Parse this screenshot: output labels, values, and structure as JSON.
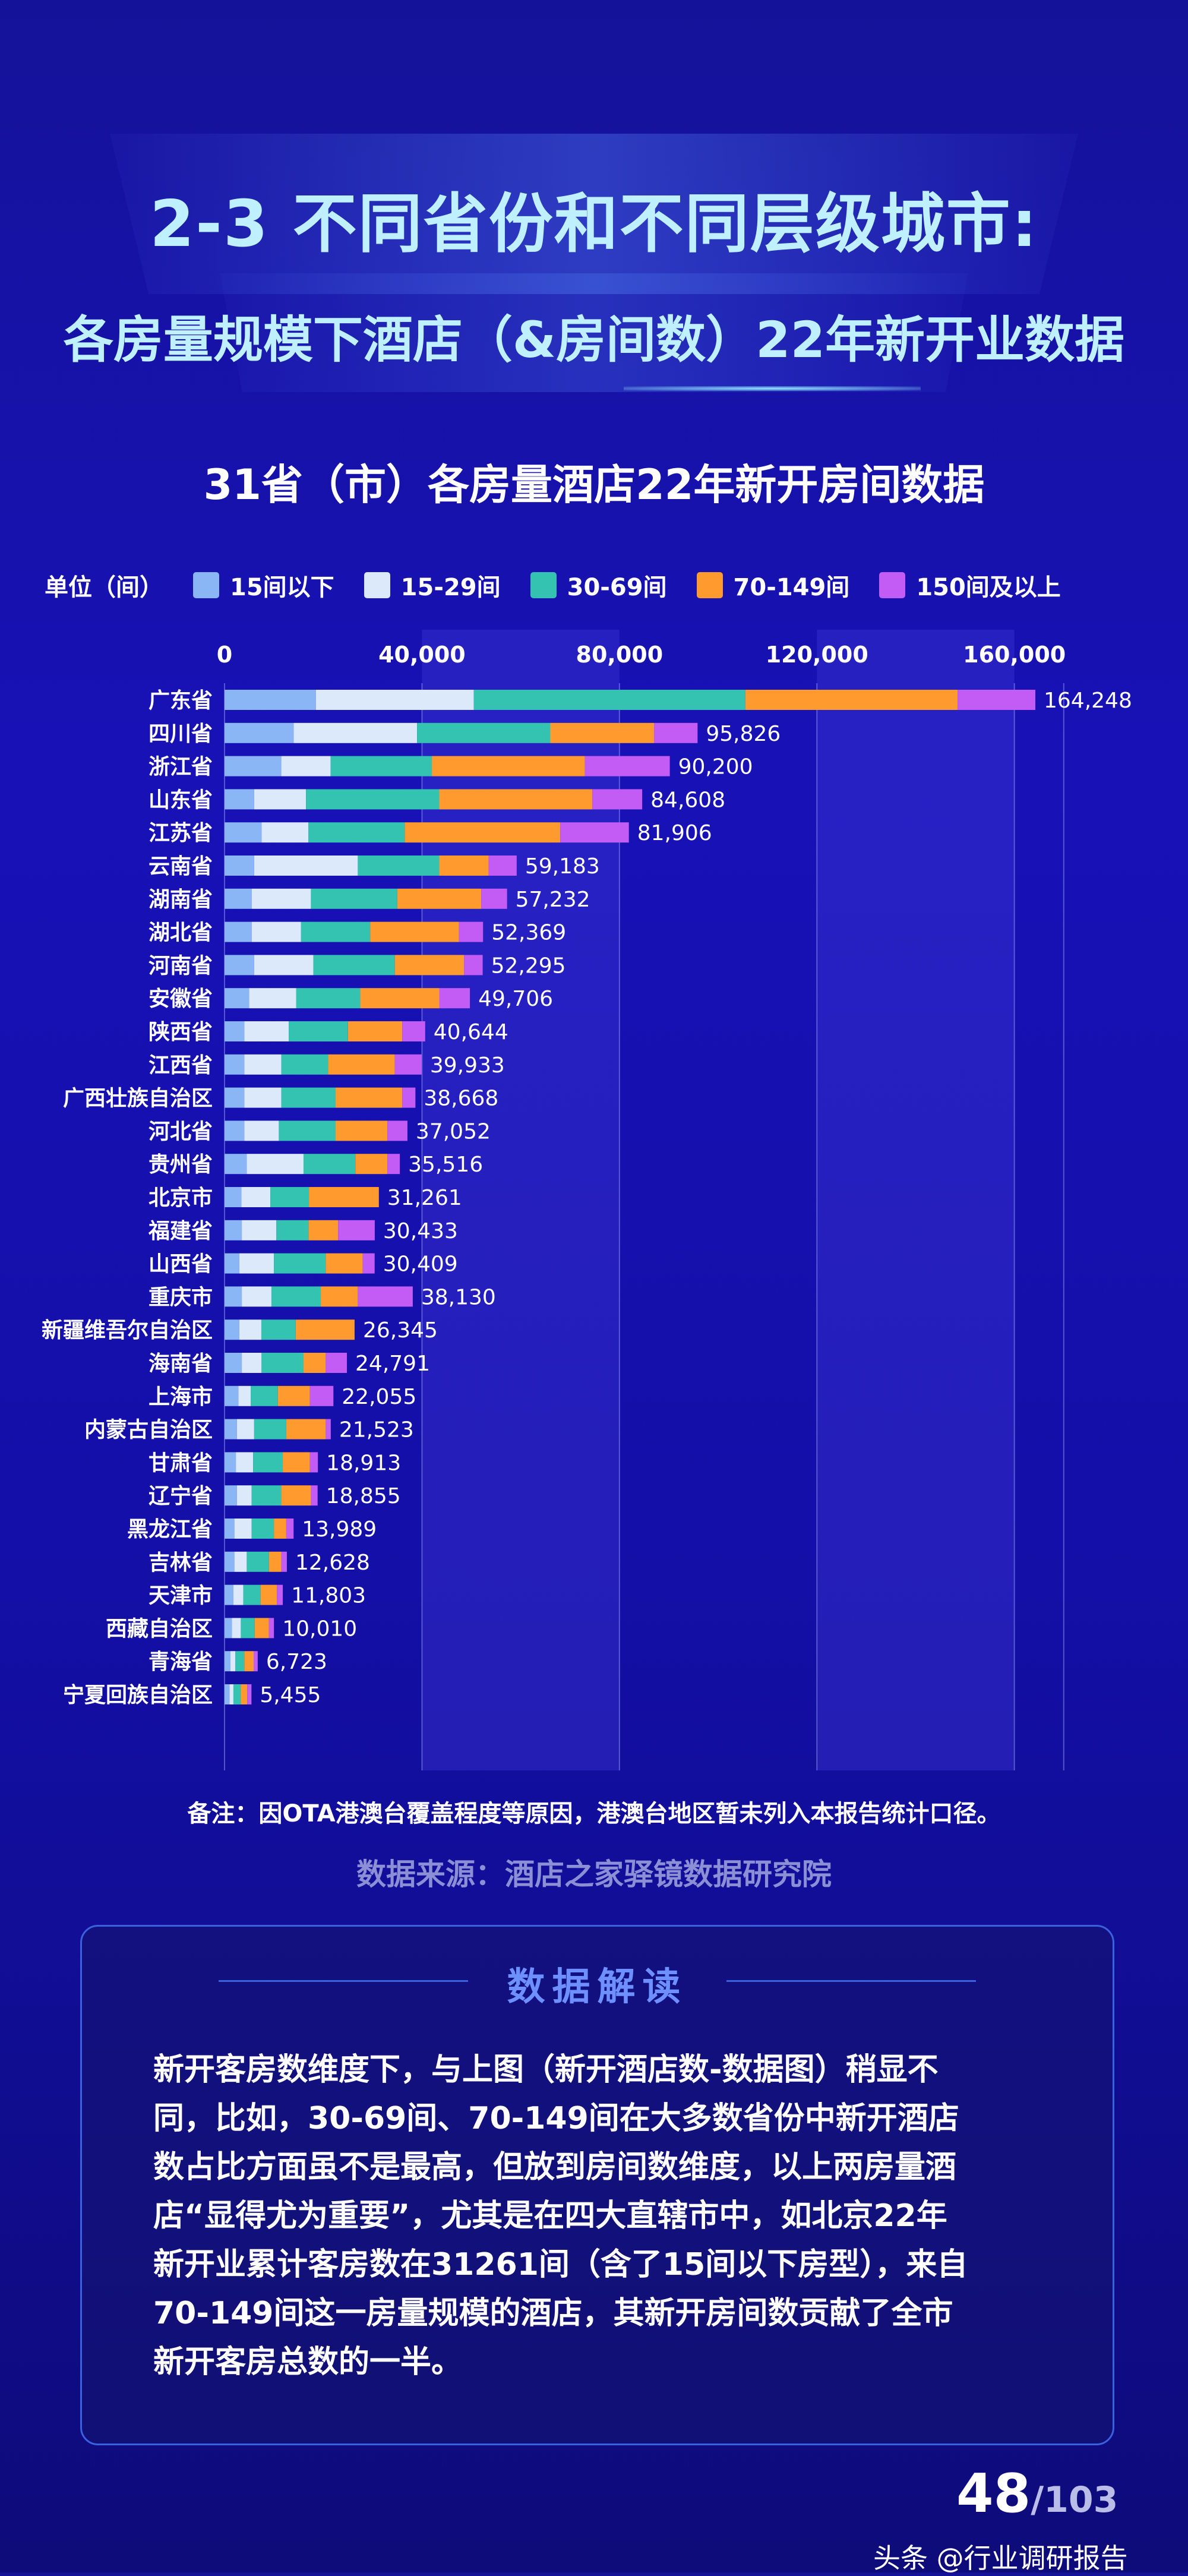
{
  "header": {
    "title_line1": "2-3 不同省份和不同层级城市:",
    "title_line2": "各房量规模下酒店（&房间数）22年新开业数据"
  },
  "chart_data": {
    "type": "bar",
    "orientation": "horizontal",
    "stacked": true,
    "title": "31省（市）各房量酒店22年新开房间数据",
    "unit_label": "单位（间）",
    "xlim": [
      0,
      170000
    ],
    "xticks": [
      0,
      40000,
      80000,
      120000,
      160000
    ],
    "xtick_labels": [
      "0",
      "40,000",
      "80,000",
      "120,000",
      "160,000"
    ],
    "categories": [
      "广东省",
      "四川省",
      "浙江省",
      "山东省",
      "江苏省",
      "云南省",
      "湖南省",
      "湖北省",
      "河南省",
      "安徽省",
      "陕西省",
      "江西省",
      "广西壮族自治区",
      "河北省",
      "贵州省",
      "北京市",
      "福建省",
      "山西省",
      "重庆市",
      "新疆维吾尔自治区",
      "海南省",
      "上海市",
      "内蒙古自治区",
      "甘肃省",
      "辽宁省",
      "黑龙江省",
      "吉林省",
      "天津市",
      "西藏自治区",
      "青海省",
      "宁夏回族自治区"
    ],
    "totals": [
      164248,
      95826,
      90200,
      84608,
      81906,
      59183,
      57232,
      52369,
      52295,
      49706,
      40644,
      39933,
      38668,
      37052,
      35516,
      31261,
      30433,
      30409,
      38130,
      26345,
      24791,
      22055,
      21523,
      18913,
      18855,
      13989,
      12628,
      11803,
      10010,
      6723,
      5455
    ],
    "total_labels": [
      "164,248",
      "95,826",
      "90,200",
      "84,608",
      "81,906",
      "59,183",
      "57,232",
      "52,369",
      "52,295",
      "49,706",
      "40,644",
      "39,933",
      "38,668",
      "37,052",
      "35,516",
      "31,261",
      "30,433",
      "30,409",
      "38,130",
      "26,345",
      "24,791",
      "22,055",
      "21,523",
      "18,913",
      "18,855",
      "13,989",
      "12,628",
      "11,803",
      "10,010",
      "6,723",
      "5,455"
    ],
    "series": [
      {
        "name": "15间以下",
        "color": "#8ab6f5",
        "values": [
          18500,
          14000,
          11500,
          6000,
          7500,
          6000,
          5500,
          5500,
          6000,
          5000,
          4000,
          4000,
          4000,
          4000,
          4500,
          3500,
          3500,
          3000,
          3500,
          3000,
          3500,
          2800,
          2500,
          2300,
          2500,
          2000,
          2000,
          1800,
          1500,
          1200,
          1000
        ]
      },
      {
        "name": "15-29间",
        "color": "#dce9fa",
        "values": [
          32000,
          25000,
          10000,
          10500,
          9500,
          21000,
          12000,
          10000,
          12000,
          9500,
          9000,
          7500,
          7500,
          7000,
          11500,
          6000,
          7000,
          7000,
          6000,
          4500,
          4000,
          2500,
          3500,
          3500,
          3000,
          3500,
          2500,
          2000,
          1800,
          1000,
          800
        ]
      },
      {
        "name": "30-69间",
        "color": "#34c3b0",
        "values": [
          55000,
          27000,
          20500,
          27000,
          19500,
          16500,
          17500,
          14000,
          16500,
          13000,
          12000,
          9500,
          11000,
          11500,
          10500,
          8000,
          6500,
          10500,
          10000,
          7000,
          8500,
          5500,
          6500,
          6000,
          6000,
          4500,
          4500,
          3500,
          2800,
          1800,
          1500
        ]
      },
      {
        "name": "70-149间",
        "color": "#ff9a2e",
        "values": [
          43000,
          21000,
          31000,
          31000,
          31500,
          10000,
          17000,
          18000,
          14000,
          16000,
          11000,
          13500,
          13500,
          10500,
          6500,
          14500,
          6000,
          7500,
          7500,
          12000,
          4500,
          6500,
          8000,
          5500,
          6000,
          2500,
          2500,
          3300,
          2900,
          1900,
          1300
        ]
      },
      {
        "name": "150间及以上",
        "color": "#c25cf5",
        "values": [
          15748,
          8826,
          17200,
          10108,
          13906,
          5683,
          5232,
          4869,
          3795,
          6206,
          4644,
          5433,
          2668,
          4052,
          2516,
          -739,
          7433,
          2409,
          11130,
          -155,
          4291,
          4755,
          1023,
          1613,
          1355,
          1489,
          1128,
          1203,
          1010,
          823,
          855
        ]
      }
    ]
  },
  "footer": {
    "note": "备注：因OTA港澳台覆盖程度等原因，港澳台地区暂未列入本报告统计口径。",
    "source": "数据来源：酒店之家驿镜数据研究院"
  },
  "insight": {
    "title": "数据解读",
    "lines": [
      "新开客房数维度下，与上图（新开酒店数-数据图）稍显不",
      "同，比如，30-69间、70-149间在大多数省份中新开酒店",
      "数占比方面虽不是最高，但放到房间数维度，以上两房量酒",
      "店“显得尤为重要”，尤其是在四大直辖市中，如北京22年",
      "新开业累计客房数在31261间（含了15间以下房型），来自",
      "70-149间这一房量规模的酒店，其新开房间数贡献了全市",
      "新开客房总数的一半。"
    ]
  },
  "page": {
    "current": "48",
    "total": "/103"
  },
  "credit": "头条 @行业调研报告"
}
